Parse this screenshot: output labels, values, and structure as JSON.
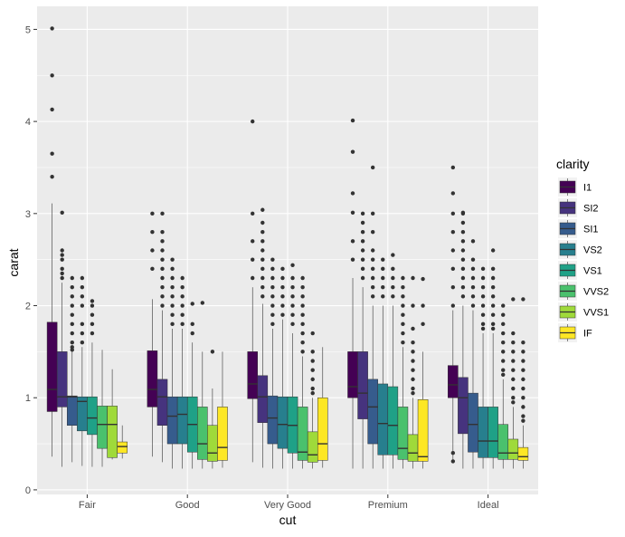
{
  "chart_data": {
    "type": "boxplot",
    "title": "",
    "xlabel": "cut",
    "ylabel": "carat",
    "ylim": [
      -0.05,
      5.25
    ],
    "yticks": [
      0,
      1,
      2,
      3,
      4,
      5
    ],
    "grid": true,
    "categories": [
      "Fair",
      "Good",
      "Very Good",
      "Premium",
      "Ideal"
    ],
    "legend": {
      "title": "clarity",
      "position": "right",
      "entries": [
        "I1",
        "SI2",
        "SI1",
        "VS2",
        "VS1",
        "VVS2",
        "VVS1",
        "IF"
      ],
      "colors": [
        "#440154",
        "#46337E",
        "#365C8D",
        "#277F8E",
        "#1FA187",
        "#4AC16D",
        "#9FDA3A",
        "#FDE725"
      ]
    },
    "boxes": [
      [
        {
          "min": 0.36,
          "q1": 0.85,
          "median": 1.09,
          "q3": 1.82,
          "max": 3.11,
          "outliers": [
            3.4,
            3.65,
            4.13,
            4.5,
            5.01
          ]
        },
        {
          "min": 0.25,
          "q1": 0.9,
          "median": 1.01,
          "q3": 1.5,
          "max": 2.25,
          "outliers": [
            2.3,
            2.35,
            2.4,
            2.5,
            2.55,
            2.6,
            3.01
          ]
        },
        {
          "min": 0.3,
          "q1": 0.7,
          "median": 1.01,
          "q3": 1.02,
          "max": 1.5,
          "outliers": [
            1.52,
            1.55,
            1.6,
            1.7,
            1.8,
            1.9,
            2.0,
            2.1,
            2.2,
            2.3
          ]
        },
        {
          "min": 0.26,
          "q1": 0.64,
          "median": 0.96,
          "q3": 1.01,
          "max": 1.55,
          "outliers": [
            1.6,
            1.7,
            1.8,
            2.0,
            2.1,
            2.2,
            2.3
          ]
        },
        {
          "min": 0.25,
          "q1": 0.6,
          "median": 0.78,
          "q3": 1.01,
          "max": 1.6,
          "outliers": [
            1.7,
            1.8,
            1.9,
            2.0,
            2.05
          ]
        },
        {
          "min": 0.25,
          "q1": 0.45,
          "median": 0.71,
          "q3": 0.91,
          "max": 1.52,
          "outliers": []
        },
        {
          "min": 0.33,
          "q1": 0.35,
          "median": 0.71,
          "q3": 0.91,
          "max": 1.31,
          "outliers": []
        },
        {
          "min": 0.34,
          "q1": 0.4,
          "median": 0.47,
          "q3": 0.52,
          "max": 0.7,
          "outliers": []
        }
      ],
      [
        {
          "min": 0.36,
          "q1": 0.9,
          "median": 1.09,
          "q3": 1.51,
          "max": 2.07,
          "outliers": [
            2.4,
            2.6,
            2.8,
            3.0
          ]
        },
        {
          "min": 0.3,
          "q1": 0.7,
          "median": 1.01,
          "q3": 1.2,
          "max": 1.95,
          "outliers": [
            2.0,
            2.1,
            2.2,
            2.3,
            2.4,
            2.5,
            2.6,
            2.7,
            2.8,
            3.0
          ]
        },
        {
          "min": 0.23,
          "q1": 0.5,
          "median": 0.8,
          "q3": 1.01,
          "max": 1.75,
          "outliers": [
            1.8,
            1.9,
            2.0,
            2.1,
            2.2,
            2.3,
            2.4,
            2.5
          ]
        },
        {
          "min": 0.23,
          "q1": 0.5,
          "median": 0.82,
          "q3": 1.01,
          "max": 1.75,
          "outliers": [
            1.8,
            1.9,
            2.0,
            2.1,
            2.2,
            2.3
          ]
        },
        {
          "min": 0.23,
          "q1": 0.41,
          "median": 0.71,
          "q3": 1.01,
          "max": 1.6,
          "outliers": [
            1.7,
            1.8,
            2.02
          ]
        },
        {
          "min": 0.23,
          "q1": 0.33,
          "median": 0.5,
          "q3": 0.9,
          "max": 1.5,
          "outliers": [
            2.03
          ]
        },
        {
          "min": 0.23,
          "q1": 0.31,
          "median": 0.4,
          "q3": 0.7,
          "max": 1.1,
          "outliers": [
            1.5
          ]
        },
        {
          "min": 0.24,
          "q1": 0.32,
          "median": 0.46,
          "q3": 0.9,
          "max": 1.5,
          "outliers": []
        }
      ],
      [
        {
          "min": 0.3,
          "q1": 0.99,
          "median": 1.15,
          "q3": 1.5,
          "max": 2.2,
          "outliers": [
            2.3,
            2.5,
            2.7,
            3.0,
            4.0
          ]
        },
        {
          "min": 0.24,
          "q1": 0.73,
          "median": 1.01,
          "q3": 1.24,
          "max": 2.02,
          "outliers": [
            2.1,
            2.2,
            2.3,
            2.4,
            2.5,
            2.6,
            2.7,
            2.8,
            2.9,
            3.04
          ]
        },
        {
          "min": 0.23,
          "q1": 0.5,
          "median": 0.78,
          "q3": 1.02,
          "max": 1.75,
          "outliers": [
            1.8,
            1.9,
            2.0,
            2.1,
            2.2,
            2.3,
            2.4,
            2.5
          ]
        },
        {
          "min": 0.23,
          "q1": 0.45,
          "median": 0.71,
          "q3": 1.01,
          "max": 1.85,
          "outliers": [
            1.9,
            2.0,
            2.1,
            2.2,
            2.3,
            2.4
          ]
        },
        {
          "min": 0.23,
          "q1": 0.4,
          "median": 0.7,
          "q3": 1.01,
          "max": 1.7,
          "outliers": [
            1.8,
            1.9,
            2.0,
            2.1,
            2.2,
            2.3,
            2.44
          ]
        },
        {
          "min": 0.23,
          "q1": 0.32,
          "median": 0.41,
          "q3": 0.9,
          "max": 1.45,
          "outliers": [
            1.5,
            1.6,
            1.7,
            1.8,
            1.9,
            2.0,
            2.1,
            2.2,
            2.3
          ]
        },
        {
          "min": 0.23,
          "q1": 0.3,
          "median": 0.38,
          "q3": 0.63,
          "max": 1.0,
          "outliers": [
            1.05,
            1.1,
            1.2,
            1.3,
            1.4,
            1.5,
            1.7
          ]
        },
        {
          "min": 0.24,
          "q1": 0.32,
          "median": 0.5,
          "q3": 1.0,
          "max": 1.55,
          "outliers": []
        }
      ],
      [
        {
          "min": 0.23,
          "q1": 1.0,
          "median": 1.12,
          "q3": 1.5,
          "max": 2.3,
          "outliers": [
            2.5,
            2.7,
            3.01,
            3.22,
            3.67,
            4.01
          ]
        },
        {
          "min": 0.23,
          "q1": 0.77,
          "median": 1.05,
          "q3": 1.5,
          "max": 2.2,
          "outliers": [
            2.3,
            2.4,
            2.5,
            2.6,
            2.7,
            2.8,
            2.9,
            3.0
          ]
        },
        {
          "min": 0.23,
          "q1": 0.5,
          "median": 0.9,
          "q3": 1.2,
          "max": 2.0,
          "outliers": [
            2.1,
            2.2,
            2.3,
            2.4,
            2.5,
            2.6,
            2.8,
            3.0,
            3.5
          ]
        },
        {
          "min": 0.23,
          "q1": 0.38,
          "median": 0.72,
          "q3": 1.15,
          "max": 2.0,
          "outliers": [
            2.1,
            2.2,
            2.3,
            2.4,
            2.5
          ]
        },
        {
          "min": 0.23,
          "q1": 0.38,
          "median": 0.7,
          "q3": 1.12,
          "max": 2.0,
          "outliers": [
            2.1,
            2.2,
            2.3,
            2.4,
            2.55
          ]
        },
        {
          "min": 0.23,
          "q1": 0.33,
          "median": 0.45,
          "q3": 0.9,
          "max": 1.55,
          "outliers": [
            1.6,
            1.7,
            1.8,
            1.9,
            2.0,
            2.1,
            2.2,
            2.3
          ]
        },
        {
          "min": 0.23,
          "q1": 0.31,
          "median": 0.4,
          "q3": 0.6,
          "max": 1.0,
          "outliers": [
            1.05,
            1.1,
            1.2,
            1.3,
            1.4,
            1.5,
            1.6,
            1.75,
            2.0,
            2.3
          ]
        },
        {
          "min": 0.23,
          "q1": 0.31,
          "median": 0.36,
          "q3": 0.98,
          "max": 1.5,
          "outliers": [
            1.8,
            2.0,
            2.29
          ]
        }
      ],
      [
        {
          "min": 0.3,
          "q1": 1.0,
          "median": 1.14,
          "q3": 1.35,
          "max": 1.95,
          "outliers": [
            0.31,
            0.4,
            2.0,
            2.2,
            2.4,
            2.6,
            2.8,
            3.0,
            3.22,
            3.5
          ]
        },
        {
          "min": 0.23,
          "q1": 0.61,
          "median": 1.0,
          "q3": 1.22,
          "max": 2.0,
          "outliers": [
            2.1,
            2.2,
            2.3,
            2.4,
            2.5,
            2.6,
            2.7,
            2.8,
            2.9,
            3.0,
            3.01
          ]
        },
        {
          "min": 0.23,
          "q1": 0.41,
          "median": 0.71,
          "q3": 1.05,
          "max": 1.95,
          "outliers": [
            2.0,
            2.1,
            2.2,
            2.3,
            2.4,
            2.5,
            2.7
          ]
        },
        {
          "min": 0.23,
          "q1": 0.35,
          "median": 0.53,
          "q3": 0.9,
          "max": 1.7,
          "outliers": [
            1.75,
            1.8,
            1.9,
            2.0,
            2.1,
            2.2,
            2.3,
            2.4
          ]
        },
        {
          "min": 0.23,
          "q1": 0.35,
          "median": 0.53,
          "q3": 0.9,
          "max": 1.7,
          "outliers": [
            1.75,
            1.8,
            1.9,
            2.0,
            2.1,
            2.2,
            2.3,
            2.4,
            2.6
          ]
        },
        {
          "min": 0.23,
          "q1": 0.33,
          "median": 0.4,
          "q3": 0.71,
          "max": 1.2,
          "outliers": [
            1.25,
            1.3,
            1.4,
            1.5,
            1.6,
            1.7,
            1.8,
            1.9,
            2.0
          ]
        },
        {
          "min": 0.23,
          "q1": 0.33,
          "median": 0.4,
          "q3": 0.55,
          "max": 0.9,
          "outliers": [
            0.95,
            1.0,
            1.1,
            1.2,
            1.3,
            1.4,
            1.5,
            1.6,
            1.7,
            2.07
          ]
        },
        {
          "min": 0.23,
          "q1": 0.32,
          "median": 0.36,
          "q3": 0.46,
          "max": 0.7,
          "outliers": [
            0.75,
            0.8,
            0.9,
            1.0,
            1.1,
            1.2,
            1.3,
            1.4,
            1.5,
            1.6,
            2.07
          ]
        }
      ]
    ]
  }
}
